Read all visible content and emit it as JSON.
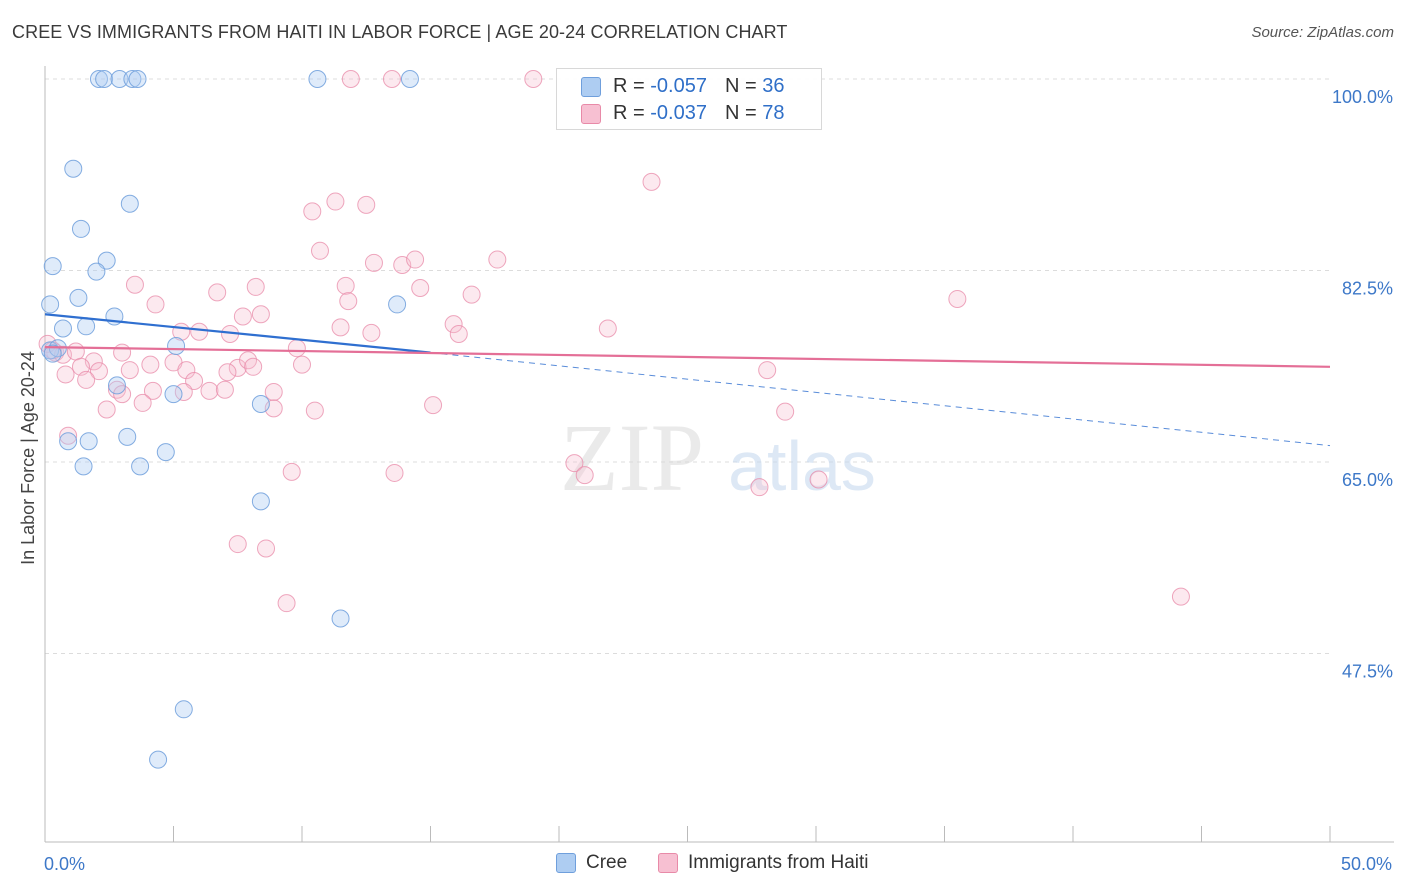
{
  "title": "CREE VS IMMIGRANTS FROM HAITI IN LABOR FORCE | AGE 20-24 CORRELATION CHART",
  "source": "Source: ZipAtlas.com",
  "watermark": {
    "zip": "ZIP",
    "atlas": "atlas"
  },
  "stat_legend": [
    {
      "r_label": "R =",
      "r_value": "-0.057",
      "n_label": "N =",
      "n_value": "36",
      "color": "#aecdf2",
      "border": "#6f9fdc"
    },
    {
      "r_label": "R =",
      "r_value": "-0.037",
      "n_label": "N =",
      "n_value": "78",
      "color": "#f7c0d2",
      "border": "#e88aa8"
    }
  ],
  "bottom_legend": [
    {
      "label": "Cree",
      "color": "#aecdf2",
      "border": "#6f9fdc"
    },
    {
      "label": "Immigrants from Haiti",
      "color": "#f7c0d2",
      "border": "#e88aa8"
    }
  ],
  "chart_data": {
    "type": "scatter",
    "title": "CREE VS IMMIGRANTS FROM HAITI IN LABOR FORCE | AGE 20-24 CORRELATION CHART",
    "xlabel": "",
    "ylabel": "In Labor Force | Age 20-24",
    "xlim": [
      0,
      50
    ],
    "ylim": [
      35,
      102
    ],
    "x_tick_labels": [
      {
        "value": 0,
        "label": "0.0%"
      },
      {
        "value": 50,
        "label": "50.0%"
      }
    ],
    "y_tick_labels": [
      {
        "value": 100,
        "label": "100.0%"
      },
      {
        "value": 82.5,
        "label": "82.5%"
      },
      {
        "value": 65,
        "label": "65.0%"
      },
      {
        "value": 47.5,
        "label": "47.5%"
      }
    ],
    "grid": true,
    "colors": {
      "cree": "#6f9fdc",
      "haiti": "#e88aa8",
      "cree_line": "#2f6fd0",
      "haiti_line": "#e46f97",
      "tick_label": "#3d78c8"
    },
    "series": [
      {
        "name": "Cree",
        "r": -0.057,
        "n": 36,
        "trend": {
          "x_start": 0,
          "y_start": 78.5,
          "x_solid_end": 15,
          "y_solid_end": 75.0,
          "x_end": 50,
          "y_end": 66.5
        },
        "points": [
          [
            2.1,
            100
          ],
          [
            2.3,
            100
          ],
          [
            2.9,
            100
          ],
          [
            3.4,
            100
          ],
          [
            3.6,
            100
          ],
          [
            10.6,
            100
          ],
          [
            14.2,
            100
          ],
          [
            1.1,
            91.8
          ],
          [
            3.3,
            88.6
          ],
          [
            1.4,
            86.3
          ],
          [
            0.3,
            82.9
          ],
          [
            2.4,
            83.4
          ],
          [
            2.0,
            82.4
          ],
          [
            0.2,
            79.4
          ],
          [
            1.3,
            80.0
          ],
          [
            2.7,
            78.3
          ],
          [
            0.7,
            77.2
          ],
          [
            1.6,
            77.4
          ],
          [
            13.7,
            79.4
          ],
          [
            0.2,
            75.2
          ],
          [
            0.5,
            75.4
          ],
          [
            0.3,
            74.9
          ],
          [
            5.1,
            75.6
          ],
          [
            2.8,
            72.0
          ],
          [
            5.0,
            71.2
          ],
          [
            8.4,
            70.3
          ],
          [
            0.9,
            66.9
          ],
          [
            1.7,
            66.9
          ],
          [
            3.2,
            67.3
          ],
          [
            1.5,
            64.6
          ],
          [
            3.7,
            64.6
          ],
          [
            4.7,
            65.9
          ],
          [
            8.4,
            61.4
          ],
          [
            11.5,
            50.7
          ],
          [
            5.4,
            42.4
          ],
          [
            4.4,
            37.8
          ]
        ]
      },
      {
        "name": "Immigrants from Haiti",
        "r": -0.037,
        "n": 78,
        "trend": {
          "x_start": 0,
          "y_start": 75.5,
          "x_end": 50,
          "y_end": 73.7
        },
        "points": [
          [
            11.9,
            100
          ],
          [
            13.5,
            100
          ],
          [
            19.0,
            100
          ],
          [
            23.6,
            90.6
          ],
          [
            11.3,
            88.8
          ],
          [
            10.4,
            87.9
          ],
          [
            12.5,
            88.5
          ],
          [
            10.7,
            84.3
          ],
          [
            12.8,
            83.2
          ],
          [
            13.9,
            83.0
          ],
          [
            14.4,
            83.5
          ],
          [
            17.6,
            83.5
          ],
          [
            3.5,
            81.2
          ],
          [
            8.2,
            81.0
          ],
          [
            11.7,
            81.1
          ],
          [
            6.7,
            80.5
          ],
          [
            14.6,
            80.9
          ],
          [
            16.6,
            80.3
          ],
          [
            35.5,
            79.9
          ],
          [
            4.3,
            79.4
          ],
          [
            11.8,
            79.7
          ],
          [
            8.4,
            78.5
          ],
          [
            7.7,
            78.3
          ],
          [
            11.5,
            77.3
          ],
          [
            15.9,
            77.6
          ],
          [
            5.3,
            76.9
          ],
          [
            6.0,
            76.9
          ],
          [
            7.2,
            76.7
          ],
          [
            12.7,
            76.8
          ],
          [
            16.1,
            76.7
          ],
          [
            21.9,
            77.2
          ],
          [
            0.4,
            75.0
          ],
          [
            0.7,
            74.8
          ],
          [
            1.2,
            75.1
          ],
          [
            3.0,
            75.0
          ],
          [
            9.8,
            75.4
          ],
          [
            1.9,
            74.2
          ],
          [
            4.1,
            73.9
          ],
          [
            5.0,
            74.1
          ],
          [
            7.5,
            73.6
          ],
          [
            7.9,
            74.3
          ],
          [
            8.1,
            73.7
          ],
          [
            10.0,
            73.9
          ],
          [
            1.4,
            73.7
          ],
          [
            0.8,
            73.0
          ],
          [
            2.1,
            73.3
          ],
          [
            3.3,
            73.4
          ],
          [
            5.5,
            73.4
          ],
          [
            7.1,
            73.2
          ],
          [
            28.1,
            73.4
          ],
          [
            1.6,
            72.5
          ],
          [
            5.8,
            72.4
          ],
          [
            2.8,
            71.6
          ],
          [
            4.2,
            71.5
          ],
          [
            6.4,
            71.5
          ],
          [
            7.0,
            71.6
          ],
          [
            3.0,
            71.2
          ],
          [
            8.9,
            71.4
          ],
          [
            3.8,
            70.4
          ],
          [
            5.4,
            71.4
          ],
          [
            2.4,
            69.8
          ],
          [
            8.9,
            69.9
          ],
          [
            10.5,
            69.7
          ],
          [
            15.1,
            70.2
          ],
          [
            28.8,
            69.6
          ],
          [
            0.9,
            67.4
          ],
          [
            20.6,
            64.9
          ],
          [
            21.0,
            63.8
          ],
          [
            13.6,
            64.0
          ],
          [
            9.6,
            64.1
          ],
          [
            27.8,
            62.7
          ],
          [
            30.1,
            63.4
          ],
          [
            7.5,
            57.5
          ],
          [
            8.6,
            57.1
          ],
          [
            9.4,
            52.1
          ],
          [
            44.2,
            52.7
          ],
          [
            0.1,
            75.8
          ],
          [
            0.3,
            75.2
          ]
        ]
      }
    ]
  }
}
